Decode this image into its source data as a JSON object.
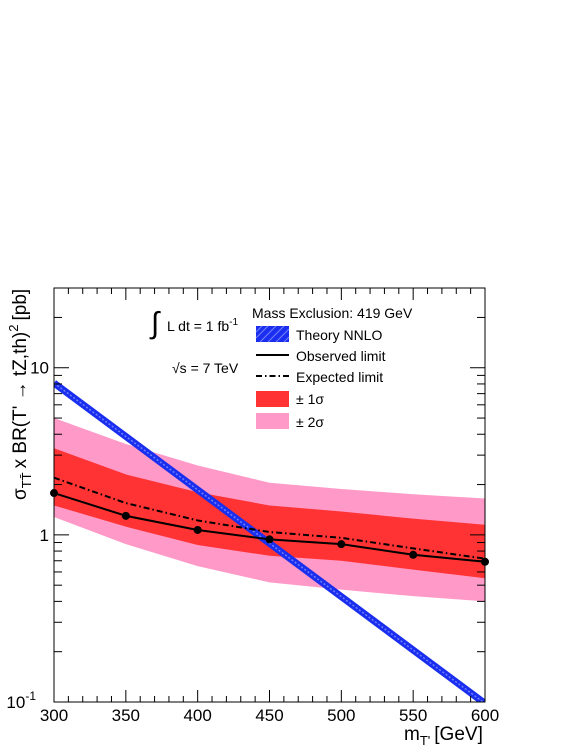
{
  "chart_data": {
    "type": "line",
    "title": "",
    "xlabel": "m",
    "xlabel_sub": "T'",
    "xlabel_unit": "[GeV]",
    "ylabel": "σ",
    "ylabel_sub": "TT̄",
    "ylabel_rest": "x BR(T' → tZ,th)",
    "ylabel_sup": "2",
    "ylabel_unit": "[pb]",
    "xlim": [
      300,
      600
    ],
    "ylim": [
      0.1,
      30
    ],
    "y_scale": "log",
    "x_ticks": [
      "300",
      "350",
      "400",
      "450",
      "500",
      "550",
      "600"
    ],
    "y_ticks": [
      {
        "value": 0.1,
        "base": "10",
        "exp": "-1"
      },
      {
        "value": 1,
        "base": "1",
        "exp": ""
      },
      {
        "value": 10,
        "base": "10",
        "exp": ""
      }
    ],
    "x": [
      300,
      350,
      400,
      450,
      500,
      550,
      600
    ],
    "series": [
      {
        "name": "Theory NNLO",
        "style": "band-line",
        "color": "#1a2ef0",
        "x": [
          300,
          600
        ],
        "values": [
          8.1,
          0.098
        ]
      },
      {
        "name": "Observed limit",
        "style": "solid-markers",
        "color": "#000000",
        "values": [
          1.78,
          1.3,
          1.07,
          0.94,
          0.88,
          0.76,
          0.69
        ]
      },
      {
        "name": "Expected limit",
        "style": "dash-dot",
        "color": "#000000",
        "values": [
          2.2,
          1.55,
          1.22,
          1.04,
          0.96,
          0.83,
          0.72
        ]
      },
      {
        "name": "± 1σ",
        "style": "band",
        "color": "#ff3333",
        "low": [
          1.5,
          1.12,
          0.87,
          0.75,
          0.7,
          0.62,
          0.55
        ],
        "high": [
          3.3,
          2.3,
          1.8,
          1.5,
          1.38,
          1.25,
          1.15
        ]
      },
      {
        "name": "± 2σ",
        "style": "band",
        "color": "#ff99c8",
        "low": [
          1.28,
          0.88,
          0.65,
          0.52,
          0.47,
          0.43,
          0.4
        ],
        "high": [
          5.0,
          3.5,
          2.6,
          2.05,
          1.88,
          1.75,
          1.65
        ]
      }
    ],
    "legend": {
      "header": "Mass Exclusion: 419 GeV",
      "placement": "top-right"
    },
    "annotations": {
      "lumi_integral": "∫",
      "lumi_text": "L dt = 1 fb",
      "lumi_exp": "-1",
      "sqrt_s": "√s = 7 TeV"
    },
    "grid": false
  }
}
